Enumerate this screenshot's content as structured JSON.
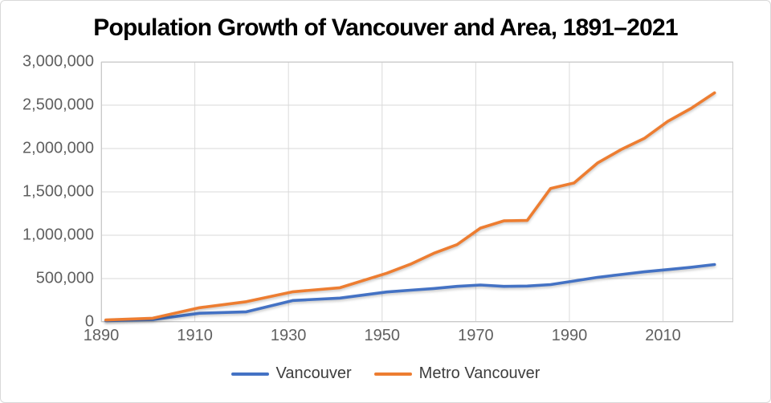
{
  "chart_data": {
    "type": "line",
    "title": "Population Growth of Vancouver and Area, 1891–2021",
    "x": [
      1891,
      1901,
      1911,
      1921,
      1931,
      1941,
      1951,
      1956,
      1961,
      1966,
      1971,
      1976,
      1981,
      1986,
      1991,
      1996,
      2001,
      2006,
      2011,
      2016,
      2021
    ],
    "series": [
      {
        "name": "Vancouver",
        "color": "#4472C4",
        "values": [
          14000,
          27000,
          100000,
          117000,
          247000,
          275000,
          345000,
          366000,
          385000,
          410000,
          426000,
          410000,
          414000,
          431000,
          472000,
          514000,
          546000,
          578000,
          604000,
          631000,
          662000
        ]
      },
      {
        "name": "Metro Vancouver",
        "color": "#ED7D31",
        "values": [
          22000,
          43000,
          164000,
          233000,
          348000,
          394000,
          562000,
          665000,
          791000,
          892000,
          1082000,
          1166000,
          1170000,
          1540000,
          1603000,
          1832000,
          1987000,
          2117000,
          2313000,
          2463000,
          2643000
        ]
      }
    ],
    "xlim": [
      1890,
      2025
    ],
    "ylim": [
      0,
      3000000
    ],
    "x_ticks": [
      1890,
      1910,
      1930,
      1950,
      1970,
      1990,
      2010
    ],
    "y_ticks": [
      0,
      500000,
      1000000,
      1500000,
      2000000,
      2500000,
      3000000
    ],
    "grid": true,
    "legend_position": "bottom"
  },
  "style": {
    "grid_color": "#dadada",
    "plot_border_color": "#c9c9c9",
    "axis_label_color": "#606060",
    "legend_text_color": "#3d3d3d",
    "title_color": "#000000",
    "background": "#ffffff",
    "card_border": "#d9d9d9",
    "line_width": 3.6
  }
}
